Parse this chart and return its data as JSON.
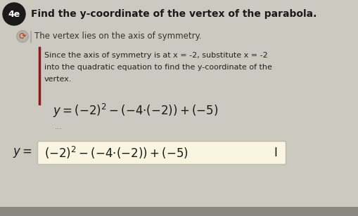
{
  "background_color": "#ccc9c1",
  "title": "Find the y-coordinate of the vertex of the parabola.",
  "badge_label": "4e",
  "badge_bg": "#1a1a1a",
  "badge_fg": "#ffffff",
  "hint_text": "The vertex lies on the axis of symmetry.",
  "body_text_line1": "Since the axis of symmetry is at x = -2, substitute x = -2",
  "body_text_line2": "into the quadratic equation to find the y-coordinate of the",
  "body_text_line3": "vertex.",
  "input_box_bg": "#faf5e0",
  "input_box_border": "#bbbbaa",
  "dark_red": "#7a0000",
  "hint_circle_color": "#cc3300",
  "hint_bar_color": "#888888",
  "body_bar_color": "#8b1a1a",
  "dots_color": "#777777",
  "text_color": "#1a1a1a",
  "body_text_color": "#222222"
}
